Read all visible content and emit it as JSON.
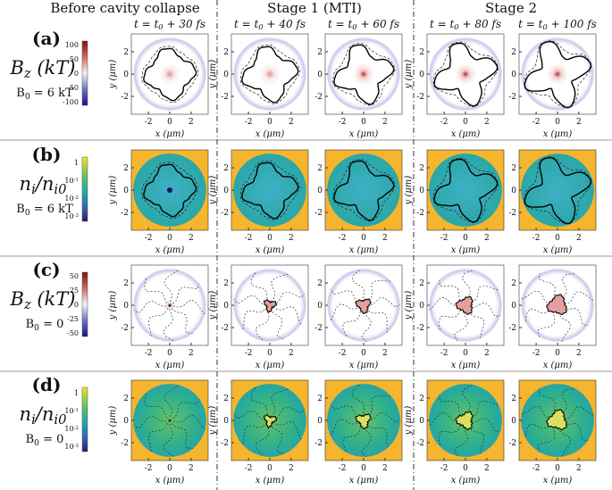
{
  "columns": [
    {
      "title": "Before cavity collapse"
    },
    {
      "title": "Stage 1 (MTI)"
    },
    {
      "title": "Stage 2"
    }
  ],
  "times": [
    [
      {
        "text": "t = t"
      },
      {
        "sub": "0"
      },
      {
        "text": " + 30 fs"
      }
    ],
    [
      {
        "text": "t = t"
      },
      {
        "sub": "0"
      },
      {
        "text": " + 40 fs"
      }
    ],
    [
      {
        "text": "t = t"
      },
      {
        "sub": "0"
      },
      {
        "text": " + 60 fs"
      }
    ],
    [
      {
        "text": "t = t"
      },
      {
        "sub": "0"
      },
      {
        "text": " + 80 fs"
      }
    ],
    [
      {
        "text": "t = t"
      },
      {
        "sub": "0"
      },
      {
        "text": " + 100 fs"
      }
    ]
  ],
  "axes": {
    "xlabel": "x (μm)",
    "ylabel": "y (μm)",
    "ticks": [
      -2,
      0,
      2
    ]
  },
  "rows": [
    {
      "label": "(a)",
      "quantity": [
        {
          "text": "B"
        },
        {
          "sub": "z"
        },
        {
          "text": " (kT)"
        }
      ],
      "field": [
        {
          "text": "B"
        },
        {
          "sub": "0"
        },
        {
          "text": " = 6 kT"
        }
      ],
      "colorbar": [
        [
          {
            "text": "100"
          }
        ],
        [
          {
            "text": "50"
          }
        ],
        [
          {
            "text": "0"
          }
        ],
        [
          {
            "text": "-50"
          }
        ],
        [
          {
            "text": "-100"
          }
        ]
      ]
    },
    {
      "label": "(b)",
      "quantity": [
        {
          "text": "n"
        },
        {
          "sub": "i"
        },
        {
          "text": "/n"
        },
        {
          "sub": "i0"
        }
      ],
      "field": [
        {
          "text": "B"
        },
        {
          "sub": "0"
        },
        {
          "text": " = 6 kT"
        }
      ],
      "colorbar": [
        [
          {
            "text": "1"
          }
        ],
        [
          {
            "text": "10"
          },
          {
            "sup": "-1"
          }
        ],
        [
          {
            "text": "10"
          },
          {
            "sup": "-2"
          }
        ],
        [
          {
            "text": "10"
          },
          {
            "sup": "-3"
          }
        ]
      ]
    },
    {
      "label": "(c)",
      "quantity": [
        {
          "text": "B"
        },
        {
          "sub": "z"
        },
        {
          "text": " (kT)"
        }
      ],
      "field": [
        {
          "text": "B"
        },
        {
          "sub": "0"
        },
        {
          "text": " = 0"
        }
      ],
      "colorbar": [
        [
          {
            "text": "50"
          }
        ],
        [
          {
            "text": "25"
          }
        ],
        [
          {
            "text": "0"
          }
        ],
        [
          {
            "text": "-25"
          }
        ],
        [
          {
            "text": "-50"
          }
        ]
      ]
    },
    {
      "label": "(d)",
      "quantity": [
        {
          "text": "n"
        },
        {
          "sub": "i"
        },
        {
          "text": "/n"
        },
        {
          "sub": "i0"
        }
      ],
      "field": [
        {
          "text": "B"
        },
        {
          "sub": "0"
        },
        {
          "text": " = 0"
        }
      ],
      "colorbar": [
        [
          {
            "text": "1"
          }
        ],
        [
          {
            "text": "10"
          },
          {
            "sup": "-1"
          }
        ],
        [
          {
            "text": "10"
          },
          {
            "sup": "-2"
          }
        ],
        [
          {
            "text": "10"
          },
          {
            "sup": "-3"
          }
        ]
      ]
    }
  ]
}
